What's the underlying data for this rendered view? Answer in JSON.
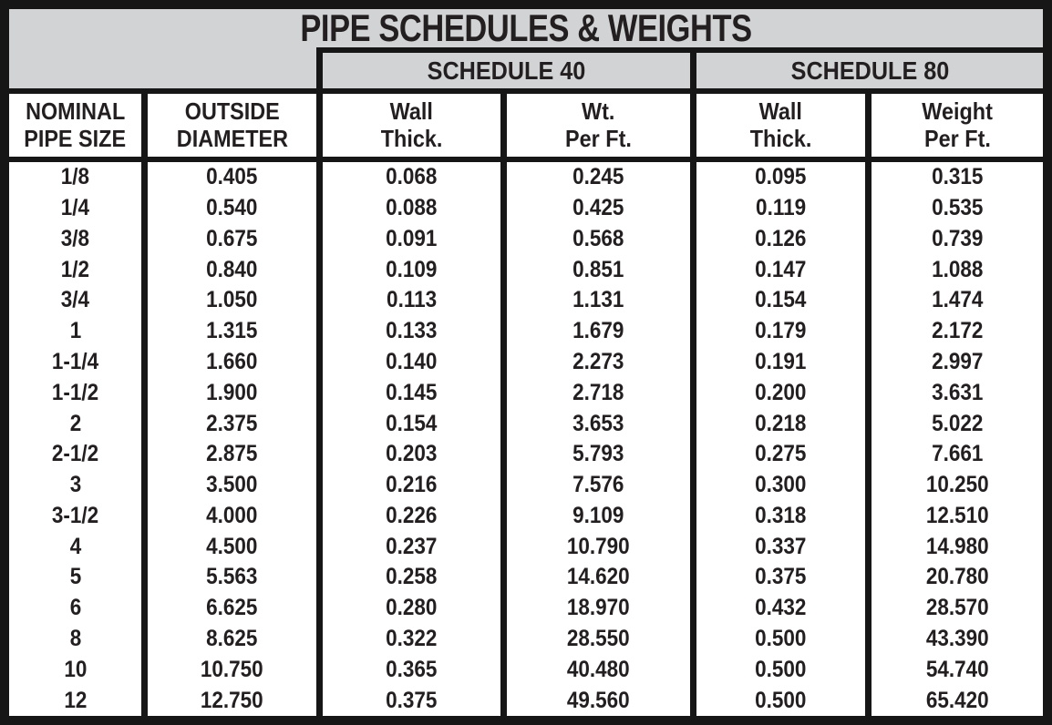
{
  "title": "PIPE SCHEDULES & WEIGHTS",
  "colors": {
    "header_gray": "#d1d3d4",
    "border_black": "#161616",
    "text": "#231f20",
    "background": "#ffffff"
  },
  "table": {
    "group_headers": [
      {
        "label": "SCHEDULE 40"
      },
      {
        "label": "SCHEDULE 80"
      }
    ],
    "columns": [
      {
        "line1": "NOMINAL",
        "line2": "PIPE SIZE"
      },
      {
        "line1": "OUTSIDE",
        "line2": "DIAMETER"
      },
      {
        "line1": "Wall",
        "line2": "Thick."
      },
      {
        "line1": "Wt.",
        "line2": "Per Ft."
      },
      {
        "line1": "Wall",
        "line2": "Thick."
      },
      {
        "line1": "Weight",
        "line2": "Per Ft."
      }
    ],
    "rows": [
      [
        "1/8",
        "0.405",
        "0.068",
        "0.245",
        "0.095",
        "0.315"
      ],
      [
        "1/4",
        "0.540",
        "0.088",
        "0.425",
        "0.119",
        "0.535"
      ],
      [
        "3/8",
        "0.675",
        "0.091",
        "0.568",
        "0.126",
        "0.739"
      ],
      [
        "1/2",
        "0.840",
        "0.109",
        "0.851",
        "0.147",
        "1.088"
      ],
      [
        "3/4",
        "1.050",
        "0.113",
        "1.131",
        "0.154",
        "1.474"
      ],
      [
        "1",
        "1.315",
        "0.133",
        "1.679",
        "0.179",
        "2.172"
      ],
      [
        "1-1/4",
        "1.660",
        "0.140",
        "2.273",
        "0.191",
        "2.997"
      ],
      [
        "1-1/2",
        "1.900",
        "0.145",
        "2.718",
        "0.200",
        "3.631"
      ],
      [
        "2",
        "2.375",
        "0.154",
        "3.653",
        "0.218",
        "5.022"
      ],
      [
        "2-1/2",
        "2.875",
        "0.203",
        "5.793",
        "0.275",
        "7.661"
      ],
      [
        "3",
        "3.500",
        "0.216",
        "7.576",
        "0.300",
        "10.250"
      ],
      [
        "3-1/2",
        "4.000",
        "0.226",
        "9.109",
        "0.318",
        "12.510"
      ],
      [
        "4",
        "4.500",
        "0.237",
        "10.790",
        "0.337",
        "14.980"
      ],
      [
        "5",
        "5.563",
        "0.258",
        "14.620",
        "0.375",
        "20.780"
      ],
      [
        "6",
        "6.625",
        "0.280",
        "18.970",
        "0.432",
        "28.570"
      ],
      [
        "8",
        "8.625",
        "0.322",
        "28.550",
        "0.500",
        "43.390"
      ],
      [
        "10",
        "10.750",
        "0.365",
        "40.480",
        "0.500",
        "54.740"
      ],
      [
        "12",
        "12.750",
        "0.375",
        "49.560",
        "0.500",
        "65.420"
      ]
    ]
  }
}
